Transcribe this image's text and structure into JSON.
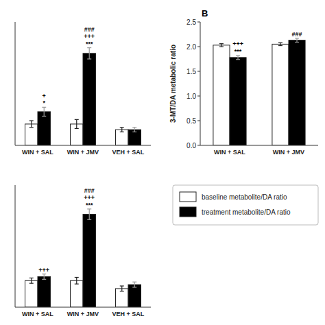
{
  "chart_data": [
    {
      "type": "bar",
      "categories": [
        "WIN + SAL",
        "WIN + JMV",
        "VEH + SAL"
      ],
      "series": [
        {
          "name": "baseline metabolite/DA ratio",
          "color": "white",
          "values": [
            1.54,
            1.54,
            1.49
          ],
          "errors": [
            0.03,
            0.04,
            0.02
          ]
        },
        {
          "name": "treatment metabolite/DA ratio",
          "color": "black",
          "values": [
            1.65,
            2.17,
            1.49
          ],
          "errors": [
            0.04,
            0.05,
            0.02
          ],
          "annotations": [
            [
              "*",
              "+"
            ],
            [
              "***",
              "+++",
              "###"
            ],
            []
          ]
        }
      ],
      "ylim": [
        1.35,
        2.45
      ],
      "tick_labels": "x",
      "legend": "lower right"
    },
    {
      "type": "bar",
      "title": "B",
      "ylabel": "3-MT/DA metabolic ratio",
      "categories": [
        "WIN + SAL",
        "WIN + JMV"
      ],
      "series": [
        {
          "color": "white",
          "values": [
            2.03,
            2.05
          ],
          "errors": [
            0.03,
            0.03
          ]
        },
        {
          "color": "black",
          "values": [
            1.78,
            2.13
          ],
          "errors": [
            0.04,
            0.04
          ],
          "annotations": [
            [
              "***",
              "+++"
            ],
            [
              "###"
            ]
          ]
        }
      ],
      "ylim": [
        0.0,
        2.5
      ],
      "yticks": [
        {
          "value": 0,
          "label": "0.0"
        },
        0.5,
        {
          "value": 1,
          "label": "1.0"
        },
        1.5,
        {
          "value": 2,
          "label": "2.0"
        },
        2.5
      ]
    },
    {
      "type": "bar",
      "categories": [
        "WIN + SAL",
        "WIN + JMV",
        "VEH + SAL"
      ],
      "series": [
        {
          "color": "white",
          "values": [
            1.1,
            1.1,
            1.04
          ],
          "errors": [
            0.02,
            0.025,
            0.02
          ]
        },
        {
          "color": "black",
          "values": [
            1.13,
            1.6,
            1.07
          ],
          "errors": [
            0.02,
            0.04,
            0.02
          ],
          "annotations": [
            [
              "+++"
            ],
            [
              "***",
              "+++",
              "###"
            ],
            []
          ]
        }
      ],
      "ylim": [
        0.9,
        1.82
      ],
      "tick_labels": "x"
    }
  ]
}
